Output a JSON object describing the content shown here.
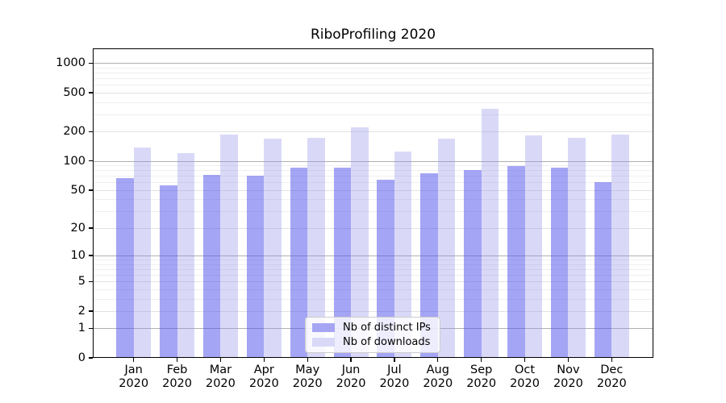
{
  "title": "RiboProfiling 2020",
  "colors": {
    "bar_dark_rgba": "rgba(82,82,235,0.52)",
    "bar_light_rgba": "rgba(146,146,232,0.35)",
    "legend_swatch_dark": "#a5a5f3",
    "legend_swatch_light": "#d9d9f7",
    "grid_major": "#b0b0b0",
    "grid_mid": "#e2e2e2",
    "grid_minor": "#efefef",
    "axis": "#000000"
  },
  "chart_data": {
    "type": "bar",
    "title": "RiboProfiling 2020",
    "categories": [
      "Jan 2020",
      "Feb 2020",
      "Mar 2020",
      "Apr 2020",
      "May 2020",
      "Jun 2020",
      "Jul 2020",
      "Aug 2020",
      "Sep 2020",
      "Oct 2020",
      "Nov 2020",
      "Dec 2020"
    ],
    "series": [
      {
        "name": "Nb of distinct IPs",
        "values": [
          67,
          56,
          72,
          70,
          86,
          85,
          64,
          74,
          81,
          88,
          86,
          61
        ]
      },
      {
        "name": "Nb of downloads",
        "values": [
          138,
          120,
          188,
          171,
          172,
          222,
          125,
          169,
          342,
          183,
          173,
          188
        ]
      }
    ],
    "xlabel": "",
    "ylabel": "",
    "y_axis": {
      "scale": "log10(1+x)",
      "tick_values": [
        0,
        1,
        2,
        5,
        10,
        20,
        50,
        100,
        200,
        500,
        1000
      ],
      "range": [
        0,
        1400
      ]
    },
    "grid": true,
    "legend_position": "lower-center"
  }
}
